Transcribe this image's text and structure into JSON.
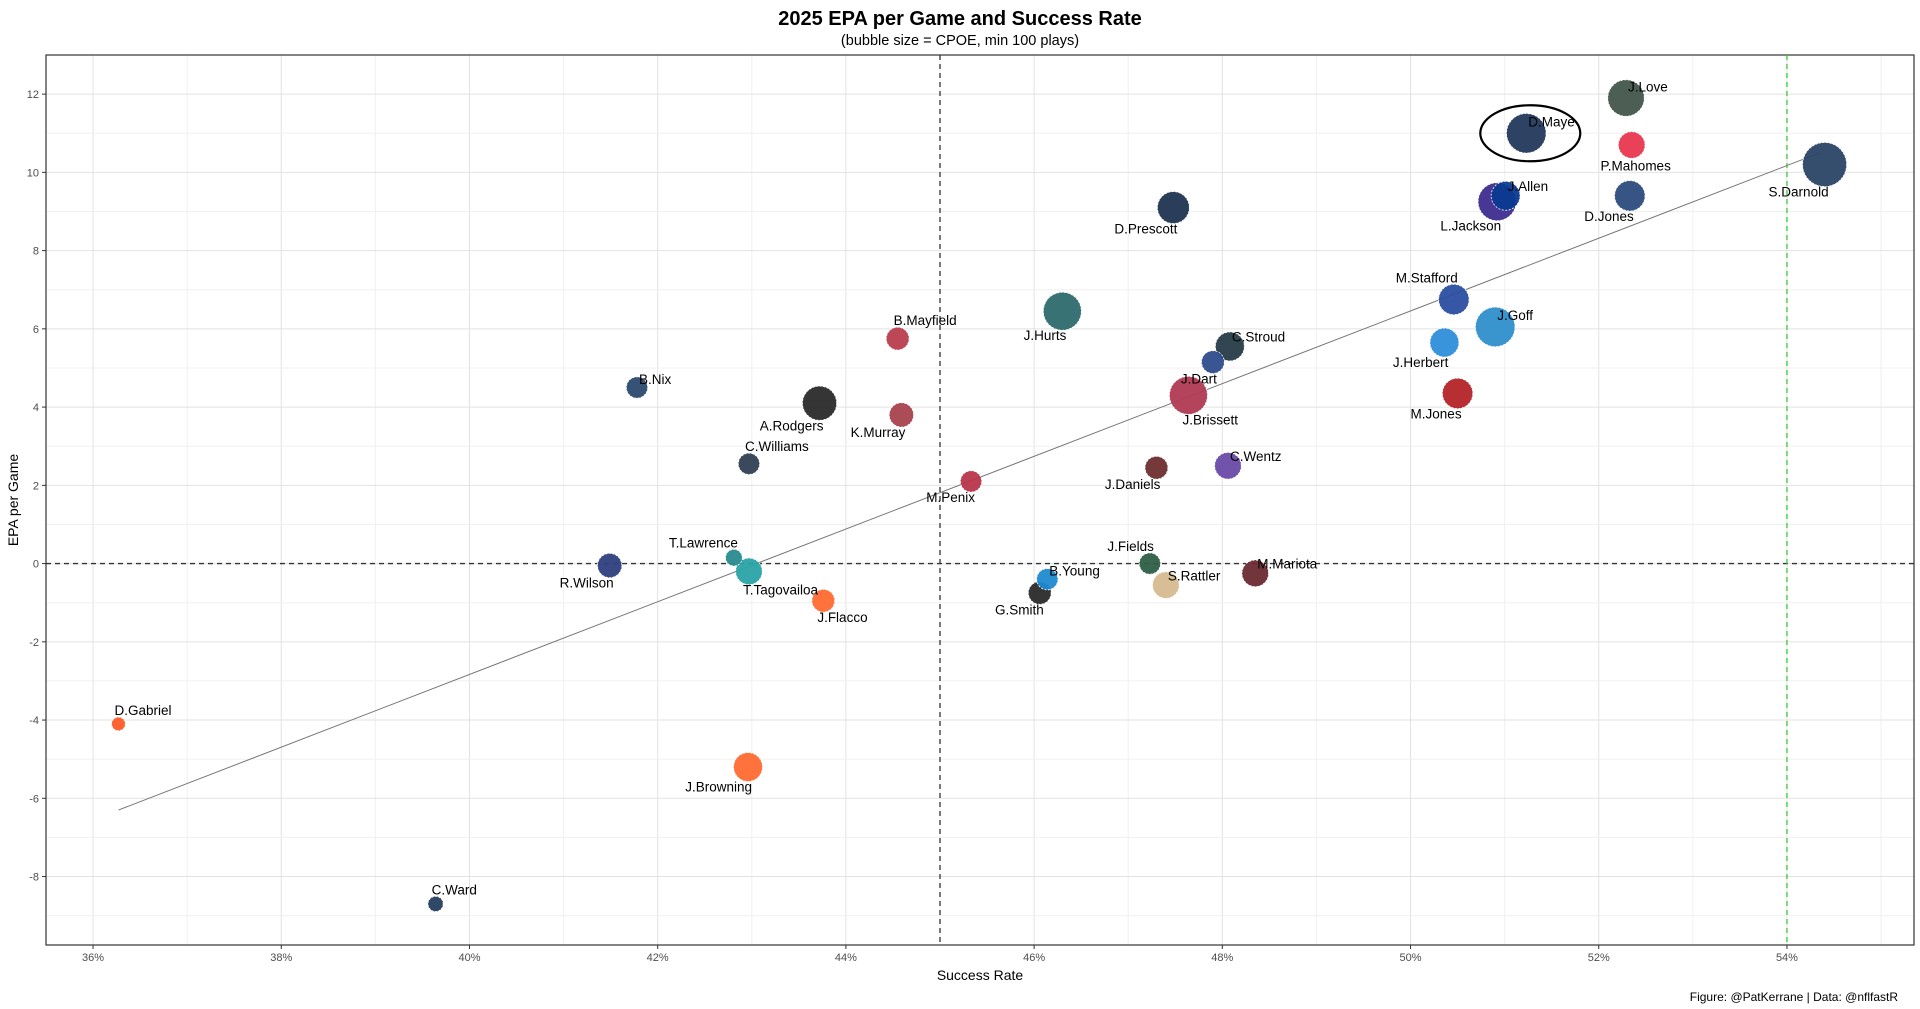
{
  "chart_data": {
    "type": "scatter",
    "title": "2025 EPA per Game and Success Rate",
    "subtitle": "(bubble size = CPOE, min 100 plays)",
    "xlabel": "Success Rate",
    "ylabel": "EPA per Game",
    "caption": "Figure: @PatKerrane | Data: @nflfastR",
    "xlim": [
      0.355,
      0.5535
    ],
    "ylim": [
      -9.75,
      13.0
    ],
    "x_ticks": [
      0.36,
      0.38,
      0.4,
      0.42,
      0.44,
      0.46,
      0.48,
      0.5,
      0.52,
      0.54
    ],
    "x_tick_labels": [
      "36%",
      "38%",
      "40%",
      "42%",
      "44%",
      "46%",
      "48%",
      "50%",
      "52%",
      "54%"
    ],
    "y_ticks": [
      -8,
      -6,
      -4,
      -2,
      0,
      2,
      4,
      6,
      8,
      10,
      12
    ],
    "y_tick_labels": [
      "-8",
      "-6",
      "-4",
      "-2",
      "0",
      "2",
      "4",
      "6",
      "8",
      "10",
      "12"
    ],
    "grid": true,
    "reference_lines": [
      {
        "axis": "x",
        "value": 0.45,
        "color": "#333333",
        "style": "dashed"
      },
      {
        "axis": "y",
        "value": 0,
        "color": "#333333",
        "style": "dashed"
      },
      {
        "axis": "x",
        "value": 0.54,
        "color": "#33cc33",
        "style": "dashed"
      }
    ],
    "trend_line": {
      "x1": 0.3627,
      "y1": -6.3,
      "x2": 0.5435,
      "y2": 10.5,
      "color": "#777777"
    },
    "highlight": {
      "label": "D.Maye"
    },
    "points": [
      {
        "label": "J.Love",
        "x": 0.5229,
        "y": 11.9,
        "size": 4.8,
        "color": "#43564B",
        "label_pos": "right"
      },
      {
        "label": "D.Maye",
        "x": 0.5123,
        "y": 11.0,
        "size": 5.2,
        "color": "#23395B",
        "label_pos": "right"
      },
      {
        "label": "P.Mahomes",
        "x": 0.5235,
        "y": 10.7,
        "size": 3.5,
        "color": "#E8384F",
        "label_pos": "below"
      },
      {
        "label": "S.Darnold",
        "x": 0.544,
        "y": 10.2,
        "size": 5.8,
        "color": "#2B4566",
        "label_pos": "below-left"
      },
      {
        "label": "J.Allen",
        "x": 0.5101,
        "y": 9.4,
        "size": 3.8,
        "color": "#0B3A8F",
        "label_pos": "right"
      },
      {
        "label": "L.Jackson",
        "x": 0.5092,
        "y": 9.25,
        "size": 5.0,
        "color": "#3F2C8F",
        "label_pos": "below-left"
      },
      {
        "label": "D.Jones",
        "x": 0.5233,
        "y": 9.4,
        "size": 4.0,
        "color": "#2B4C7E",
        "label_pos": "below-left"
      },
      {
        "label": "D.Prescott",
        "x": 0.4748,
        "y": 9.1,
        "size": 4.2,
        "color": "#1F3350",
        "label_pos": "below-left"
      },
      {
        "label": "J.Hurts",
        "x": 0.463,
        "y": 6.45,
        "size": 5.0,
        "color": "#2E6A6E",
        "label_pos": "below-left"
      },
      {
        "label": "M.Stafford",
        "x": 0.5046,
        "y": 6.75,
        "size": 4.0,
        "color": "#2A4EA0",
        "label_pos": "above-left"
      },
      {
        "label": "J.Goff",
        "x": 0.509,
        "y": 6.05,
        "size": 5.2,
        "color": "#2F8FCC",
        "label_pos": "right"
      },
      {
        "label": "J.Herbert",
        "x": 0.5036,
        "y": 5.65,
        "size": 3.8,
        "color": "#2F8EDA",
        "label_pos": "below-left"
      },
      {
        "label": "C.Stroud",
        "x": 0.4808,
        "y": 5.55,
        "size": 3.8,
        "color": "#263C48",
        "label_pos": "right"
      },
      {
        "label": "J.Dart",
        "x": 0.479,
        "y": 5.15,
        "size": 3.0,
        "color": "#2E4C8C",
        "label_pos": "below-left"
      },
      {
        "label": "J.Brissett",
        "x": 0.4764,
        "y": 4.3,
        "size": 5.0,
        "color": "#B03A52",
        "label_pos": "below-right"
      },
      {
        "label": "M.Jones",
        "x": 0.505,
        "y": 4.35,
        "size": 4.0,
        "color": "#B32428",
        "label_pos": "below-left"
      },
      {
        "label": "B.Mayfield",
        "x": 0.4455,
        "y": 5.75,
        "size": 3.0,
        "color": "#B83E4E",
        "label_pos": "above-right"
      },
      {
        "label": "B.Nix",
        "x": 0.4178,
        "y": 4.5,
        "size": 2.8,
        "color": "#2B4A6E",
        "label_pos": "right"
      },
      {
        "label": "A.Rodgers",
        "x": 0.4372,
        "y": 4.1,
        "size": 4.5,
        "color": "#2A2A2A",
        "label_pos": "below-left"
      },
      {
        "label": "K.Murray",
        "x": 0.4459,
        "y": 3.8,
        "size": 3.2,
        "color": "#A8424E",
        "label_pos": "below-left"
      },
      {
        "label": "C.Williams",
        "x": 0.4297,
        "y": 2.55,
        "size": 2.8,
        "color": "#2F3F52",
        "label_pos": "above-right"
      },
      {
        "label": "M.Penix",
        "x": 0.4533,
        "y": 2.1,
        "size": 2.8,
        "color": "#B8364A",
        "label_pos": "below-left"
      },
      {
        "label": "J.Daniels",
        "x": 0.473,
        "y": 2.45,
        "size": 3.0,
        "color": "#6E2E2E",
        "label_pos": "below-left"
      },
      {
        "label": "C.Wentz",
        "x": 0.4806,
        "y": 2.5,
        "size": 3.5,
        "color": "#6A4AA8",
        "label_pos": "right"
      },
      {
        "label": "T.Lawrence",
        "x": 0.4281,
        "y": 0.15,
        "size": 2.2,
        "color": "#2A8A8F",
        "label_pos": "above-left"
      },
      {
        "label": "T.Tagovailoa",
        "x": 0.4297,
        "y": -0.2,
        "size": 3.5,
        "color": "#2AA3A8",
        "label_pos": "below-right"
      },
      {
        "label": "R.Wilson",
        "x": 0.4149,
        "y": -0.05,
        "size": 3.2,
        "color": "#2E3F7E",
        "label_pos": "below-left"
      },
      {
        "label": "J.Flacco",
        "x": 0.4376,
        "y": -0.95,
        "size": 3.0,
        "color": "#FF6A32",
        "label_pos": "below-right"
      },
      {
        "label": "B.Young",
        "x": 0.4614,
        "y": -0.4,
        "size": 2.8,
        "color": "#1F8AD0",
        "label_pos": "right"
      },
      {
        "label": "G.Smith",
        "x": 0.4606,
        "y": -0.75,
        "size": 3.0,
        "color": "#2A2A2A",
        "label_pos": "below-left"
      },
      {
        "label": "J.Fields",
        "x": 0.4723,
        "y": 0.0,
        "size": 2.8,
        "color": "#2E5E44",
        "label_pos": "above-left"
      },
      {
        "label": "S.Rattler",
        "x": 0.474,
        "y": -0.55,
        "size": 3.5,
        "color": "#D5BB8E",
        "label_pos": "right"
      },
      {
        "label": "M.Mariota",
        "x": 0.4835,
        "y": -0.25,
        "size": 3.5,
        "color": "#6A2A30",
        "label_pos": "right"
      },
      {
        "label": "D.Gabriel",
        "x": 0.3627,
        "y": -4.1,
        "size": 1.8,
        "color": "#FF5A28",
        "label_pos": "above-right"
      },
      {
        "label": "J.Browning",
        "x": 0.4296,
        "y": -5.2,
        "size": 3.8,
        "color": "#FF6A32",
        "label_pos": "below-left"
      },
      {
        "label": "C.Ward",
        "x": 0.3964,
        "y": -8.7,
        "size": 2.0,
        "color": "#243E5E",
        "label_pos": "above-right"
      }
    ]
  }
}
